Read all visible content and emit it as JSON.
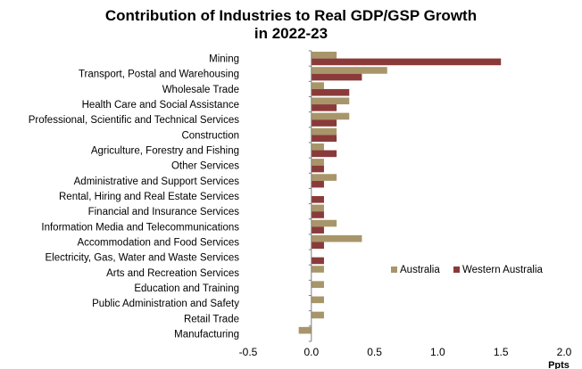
{
  "chart_data": {
    "type": "bar",
    "orientation": "horizontal",
    "title": [
      "Contribution of Industries to Real GDP/GSP Growth",
      "in 2022-23"
    ],
    "x_unit_label": "Ppts",
    "xlim": [
      -0.5,
      2.0
    ],
    "x_ticks": [
      "-0.5",
      "0.0",
      "0.5",
      "1.0",
      "1.5",
      "2.0"
    ],
    "grid": false,
    "legend_position": "right",
    "categories": [
      "Mining",
      "Transport, Postal and Warehousing",
      "Wholesale Trade",
      "Health Care and Social Assistance",
      "Professional, Scientific and Technical Services",
      "Construction",
      "Agriculture, Forestry and Fishing",
      "Other Services",
      "Administrative and Support Services",
      "Rental, Hiring and Real Estate Services",
      "Financial and Insurance Services",
      "Information Media and Telecommunications",
      "Accommodation and Food Services",
      "Electricity, Gas, Water and Waste Services",
      "Arts and Recreation Services",
      "Education and Training",
      "Public Administration and Safety",
      "Retail Trade",
      "Manufacturing"
    ],
    "series": [
      {
        "name": "Australia",
        "color": "#a8966a",
        "values": [
          0.2,
          0.6,
          0.1,
          0.3,
          0.3,
          0.2,
          0.1,
          0.1,
          0.2,
          0.0,
          0.1,
          0.2,
          0.4,
          0.0,
          0.1,
          0.1,
          0.1,
          0.1,
          -0.1
        ]
      },
      {
        "name": "Western Australia",
        "color": "#8b3a3a",
        "values": [
          1.5,
          0.4,
          0.3,
          0.2,
          0.2,
          0.2,
          0.2,
          0.1,
          0.1,
          0.1,
          0.1,
          0.1,
          0.1,
          0.1,
          0.0,
          0.0,
          0.0,
          0.0,
          0.0
        ]
      }
    ]
  }
}
